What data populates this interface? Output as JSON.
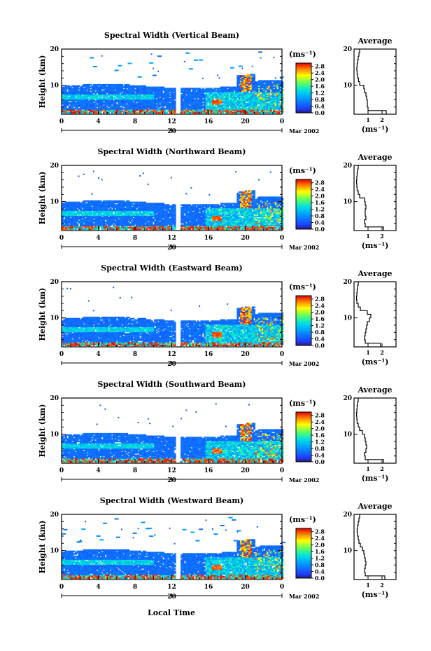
{
  "figure": {
    "x_axis_label": "Local Time",
    "day_label": "20",
    "month_label": "Mar 2002"
  },
  "chart_data": [
    {
      "type": "heatmap",
      "title": "Spectral Width (Vertical Beam)",
      "ylabel": "Height (km)",
      "xlabel": "Local Time",
      "xticks": [
        "0",
        "4",
        "8",
        "12",
        "16",
        "20",
        "0"
      ],
      "yticks": [
        "10",
        "20"
      ],
      "xlim": [
        0,
        24
      ],
      "ylim": [
        2,
        20
      ],
      "colorbar": {
        "unit": "(ms⁻¹)",
        "ticks": [
          "2.8",
          "2.4",
          "2.0",
          "1.6",
          "1.2",
          "0.8",
          "0.4",
          "0.0"
        ],
        "range": [
          0,
          3.0
        ]
      },
      "data_gap_hour": 12.6,
      "has_upper_patches": true,
      "average_profile": {
        "title": "Average",
        "xlabel": "(ms⁻¹)",
        "xticks": [
          "1",
          "2"
        ],
        "yticks": [
          "10",
          "20"
        ],
        "xlim": [
          0,
          3
        ],
        "ylim": [
          2,
          20
        ],
        "height": [
          2.5,
          3.5,
          4.5,
          5.5,
          6.5,
          7.5,
          8.5,
          9.5,
          10.5,
          11.5,
          12.5,
          13.5,
          14.5,
          15.5,
          16.5,
          17.5,
          18.5,
          19.5
        ],
        "value": [
          2.3,
          1.0,
          0.95,
          0.95,
          0.9,
          0.85,
          0.75,
          0.7,
          0.4,
          0.32,
          0.25,
          0.22,
          0.2,
          0.22,
          0.25,
          0.3,
          0.35,
          0.4
        ]
      }
    },
    {
      "type": "heatmap",
      "title": "Spectral Width (Northward Beam)",
      "ylabel": "Height (km)",
      "xlabel": "Local Time",
      "xticks": [
        "0",
        "4",
        "8",
        "12",
        "16",
        "20",
        "0"
      ],
      "yticks": [
        "10",
        "20"
      ],
      "xlim": [
        0,
        24
      ],
      "ylim": [
        2,
        20
      ],
      "colorbar": {
        "unit": "(ms⁻¹)",
        "ticks": [
          "2.8",
          "2.4",
          "2.0",
          "1.6",
          "1.2",
          "0.8",
          "0.4",
          "0.0"
        ],
        "range": [
          0,
          3.0
        ]
      },
      "data_gap_hour": 12.6,
      "has_upper_patches": false,
      "average_profile": {
        "title": "Average",
        "xlabel": "(ms⁻¹)",
        "xticks": [
          "1",
          "2"
        ],
        "yticks": [
          "10",
          "20"
        ],
        "xlim": [
          0,
          3
        ],
        "ylim": [
          2,
          20
        ],
        "height": [
          2.5,
          3.5,
          4.5,
          5.5,
          6.5,
          7.5,
          8.5,
          9.5,
          10.5,
          11.5,
          12.5,
          13.5,
          14.5,
          15.5,
          16.5,
          17.5,
          18.5,
          19.5
        ],
        "value": [
          2.1,
          0.8,
          0.75,
          0.85,
          0.8,
          0.8,
          0.85,
          0.8,
          0.75,
          0.4,
          0.3,
          0.22,
          0.2,
          0.18,
          0.2,
          0.22,
          0.25,
          0.3
        ]
      }
    },
    {
      "type": "heatmap",
      "title": "Spectral Width (Eastward Beam)",
      "ylabel": "Height (km)",
      "xlabel": "Local Time",
      "xticks": [
        "0",
        "4",
        "8",
        "12",
        "16",
        "20",
        "0"
      ],
      "yticks": [
        "10",
        "20"
      ],
      "xlim": [
        0,
        24
      ],
      "ylim": [
        2,
        20
      ],
      "colorbar": {
        "unit": "(ms⁻¹)",
        "ticks": [
          "2.8",
          "2.4",
          "2.0",
          "1.6",
          "1.2",
          "0.8",
          "0.4",
          "0.0"
        ],
        "range": [
          0,
          3.0
        ]
      },
      "data_gap_hour": 12.6,
      "has_upper_patches": false,
      "average_profile": {
        "title": "Average",
        "xlabel": "(ms⁻¹)",
        "xticks": [
          "1",
          "2"
        ],
        "yticks": [
          "10",
          "20"
        ],
        "xlim": [
          0,
          3
        ],
        "ylim": [
          2,
          20
        ],
        "height": [
          2.5,
          3.5,
          4.5,
          5.5,
          6.5,
          7.5,
          8.5,
          9.5,
          10.5,
          11.5,
          12.5,
          13.5,
          14.5,
          15.5,
          16.5,
          17.5,
          18.5,
          19.5
        ],
        "value": [
          1.9,
          0.8,
          0.75,
          0.8,
          0.85,
          0.9,
          0.95,
          1.1,
          1.2,
          0.95,
          0.45,
          0.3,
          0.2,
          0.18,
          0.2,
          0.22,
          0.25,
          0.3
        ]
      }
    },
    {
      "type": "heatmap",
      "title": "Spectral Width (Southward Beam)",
      "ylabel": "Height (km)",
      "xlabel": "Local Time",
      "xticks": [
        "0",
        "4",
        "8",
        "12",
        "16",
        "20",
        "0"
      ],
      "yticks": [
        "10",
        "20"
      ],
      "xlim": [
        0,
        24
      ],
      "ylim": [
        2,
        20
      ],
      "colorbar": {
        "unit": "(ms⁻¹)",
        "ticks": [
          "2.8",
          "2.4",
          "2.0",
          "1.6",
          "1.2",
          "0.8",
          "0.4",
          "0.0"
        ],
        "range": [
          0,
          3.0
        ]
      },
      "data_gap_hour": 12.6,
      "has_upper_patches": false,
      "average_profile": {
        "title": "Average",
        "xlabel": "(ms⁻¹)",
        "xticks": [
          "1",
          "2"
        ],
        "yticks": [
          "10",
          "20"
        ],
        "xlim": [
          0,
          3
        ],
        "ylim": [
          2,
          20
        ],
        "height": [
          2.5,
          3.5,
          4.5,
          5.5,
          6.5,
          7.5,
          8.5,
          9.5,
          10.5,
          11.5,
          12.5,
          13.5,
          14.5,
          15.5,
          16.5,
          17.5,
          18.5,
          19.5
        ],
        "value": [
          2.1,
          0.8,
          0.75,
          0.85,
          0.9,
          0.85,
          0.8,
          0.75,
          0.6,
          0.4,
          0.3,
          0.22,
          0.2,
          0.18,
          0.2,
          0.22,
          0.25,
          0.3
        ]
      }
    },
    {
      "type": "heatmap",
      "title": "Spectral Width (Westward Beam)",
      "ylabel": "Height (km)",
      "xlabel": "Local Time",
      "xticks": [
        "0",
        "4",
        "8",
        "12",
        "16",
        "20",
        "0"
      ],
      "yticks": [
        "10",
        "20"
      ],
      "xlim": [
        0,
        24
      ],
      "ylim": [
        2,
        20
      ],
      "colorbar": {
        "unit": "(ms⁻¹)",
        "ticks": [
          "2.8",
          "2.4",
          "2.0",
          "1.6",
          "1.2",
          "0.8",
          "0.4",
          "0.0"
        ],
        "range": [
          0,
          3.0
        ]
      },
      "data_gap_hour": 12.6,
      "has_upper_patches": true,
      "average_profile": {
        "title": "Average",
        "xlabel": "(ms⁻¹)",
        "xticks": [
          "1",
          "2"
        ],
        "yticks": [
          "10",
          "20"
        ],
        "xlim": [
          0,
          3
        ],
        "ylim": [
          2,
          20
        ],
        "height": [
          2.5,
          3.5,
          4.5,
          5.5,
          6.5,
          7.5,
          8.5,
          9.5,
          10.5,
          11.5,
          12.5,
          13.5,
          14.5,
          15.5,
          16.5,
          17.5,
          18.5,
          19.5
        ],
        "value": [
          2.2,
          0.8,
          0.75,
          0.8,
          0.85,
          0.8,
          0.75,
          0.7,
          0.6,
          0.45,
          0.35,
          0.3,
          0.25,
          0.22,
          0.25,
          0.3,
          0.35,
          0.4
        ]
      }
    }
  ]
}
